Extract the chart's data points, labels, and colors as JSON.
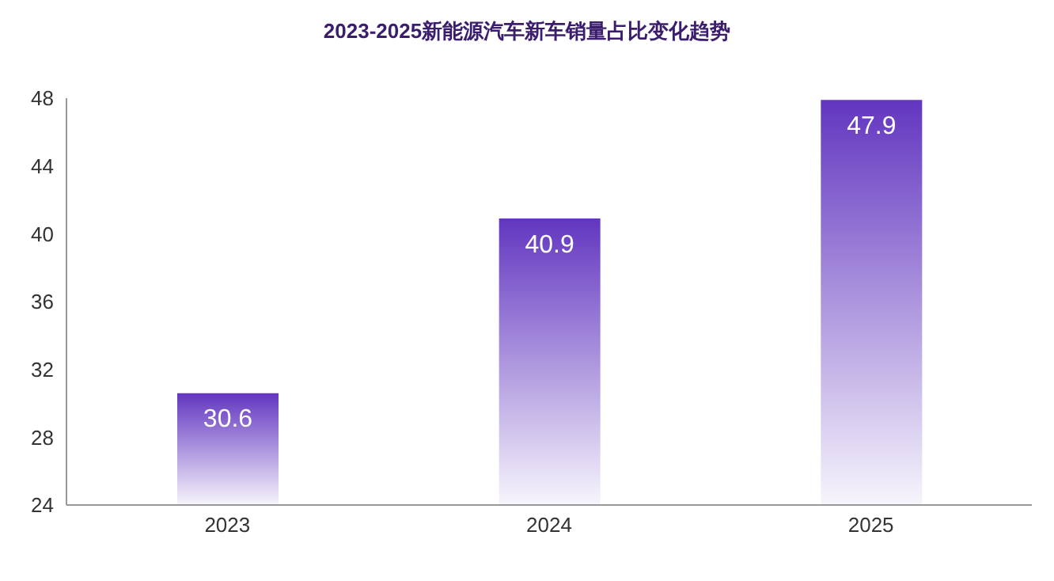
{
  "chart_data": {
    "type": "bar",
    "title": "2023-2025新能源汽车新车销量占比变化趋势",
    "categories": [
      "2023",
      "2024",
      "2025"
    ],
    "values": [
      30.6,
      40.9,
      47.9
    ],
    "color": "#6236c0",
    "ylim": [
      24,
      48
    ],
    "yticks": [
      24,
      28,
      32,
      36,
      40,
      44,
      48
    ],
    "grid": false,
    "data_labels": true,
    "legend": false
  }
}
